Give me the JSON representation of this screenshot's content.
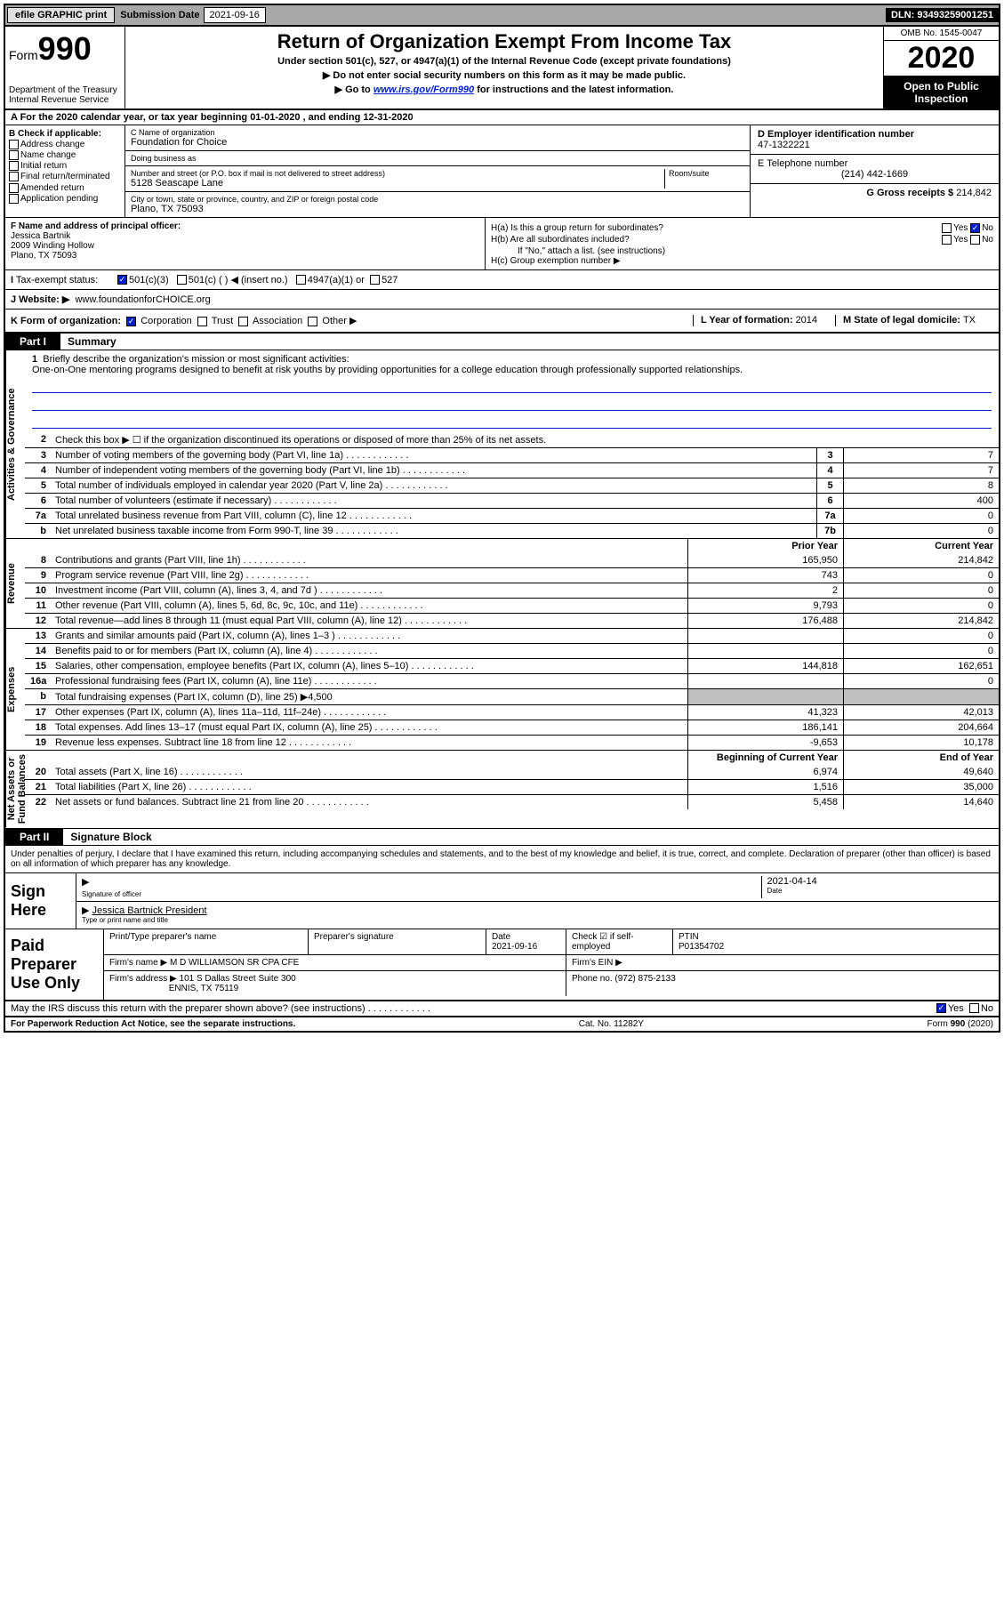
{
  "topbar": {
    "efile": "efile GRAPHIC print",
    "sub_label": "Submission Date",
    "sub_date": "2021-09-16",
    "dln_label": "DLN:",
    "dln": "93493259001251"
  },
  "header": {
    "form_prefix": "Form",
    "form_num": "990",
    "dept": "Department of the Treasury\nInternal Revenue Service",
    "title": "Return of Organization Exempt From Income Tax",
    "sub1": "Under section 501(c), 527, or 4947(a)(1) of the Internal Revenue Code (except private foundations)",
    "sub2": "Do not enter social security numbers on this form as it may be made public.",
    "sub3_pre": "Go to ",
    "sub3_link": "www.irs.gov/Form990",
    "sub3_post": " for instructions and the latest information.",
    "omb": "OMB No. 1545-0047",
    "year": "2020",
    "open": "Open to Public Inspection"
  },
  "row_a": "A For the 2020 calendar year, or tax year beginning 01-01-2020    , and ending 12-31-2020",
  "col_b": {
    "label": "B Check if applicable:",
    "items": [
      "Address change",
      "Name change",
      "Initial return",
      "Final return/terminated",
      "Amended return",
      "Application pending"
    ]
  },
  "col_c": {
    "name_lbl": "C Name of organization",
    "name": "Foundation for Choice",
    "dba_lbl": "Doing business as",
    "dba": "",
    "addr_lbl": "Number and street (or P.O. box if mail is not delivered to street address)",
    "room_lbl": "Room/suite",
    "addr": "5128 Seascape Lane",
    "city_lbl": "City or town, state or province, country, and ZIP or foreign postal code",
    "city": "Plano, TX  75093"
  },
  "col_d": {
    "ein_lbl": "D Employer identification number",
    "ein": "47-1322221",
    "tel_lbl": "E Telephone number",
    "tel": "(214) 442-1669",
    "gross_lbl": "G Gross receipts $",
    "gross": "214,842"
  },
  "f": {
    "lbl": "F  Name and address of principal officer:",
    "name": "Jessica Bartnik",
    "addr1": "2009 Winding Hollow",
    "addr2": "Plano, TX  75093"
  },
  "h": {
    "a": "H(a)  Is this a group return for subordinates?",
    "b": "H(b)  Are all subordinates included?",
    "note": "If \"No,\" attach a list. (see instructions)",
    "c": "H(c)  Group exemption number ▶",
    "yes": "Yes",
    "no": "No"
  },
  "tax": {
    "lbl": "Tax-exempt status:",
    "c3": "501(c)(3)",
    "c": "501(c) (   ) ◀ (insert no.)",
    "a1": "4947(a)(1) or",
    "s527": "527"
  },
  "website": {
    "lbl": "J Website: ▶",
    "val": "www.foundationforCHOICE.org"
  },
  "k": {
    "lbl": "K Form of organization:",
    "corp": "Corporation",
    "trust": "Trust",
    "assoc": "Association",
    "other": "Other ▶"
  },
  "l": {
    "lbl": "L Year of formation:",
    "val": "2014"
  },
  "m": {
    "lbl": "M State of legal domicile:",
    "val": "TX"
  },
  "part1": {
    "hdr": "Part I",
    "title": "Summary"
  },
  "mission": {
    "num": "1",
    "lbl": "Briefly describe the organization's mission or most significant activities:",
    "text": "One-on-One mentoring programs designed to benefit at risk youths by providing opportunities for a college education through professionally supported relationships."
  },
  "gov_lines": [
    {
      "n": "2",
      "d": "Check this box ▶ ☐  if the organization discontinued its operations or disposed of more than 25% of its net assets."
    },
    {
      "n": "3",
      "d": "Number of voting members of the governing body (Part VI, line 1a)",
      "b": "3",
      "v": "7"
    },
    {
      "n": "4",
      "d": "Number of independent voting members of the governing body (Part VI, line 1b)",
      "b": "4",
      "v": "7"
    },
    {
      "n": "5",
      "d": "Total number of individuals employed in calendar year 2020 (Part V, line 2a)",
      "b": "5",
      "v": "8"
    },
    {
      "n": "6",
      "d": "Total number of volunteers (estimate if necessary)",
      "b": "6",
      "v": "400"
    },
    {
      "n": "7a",
      "d": "Total unrelated business revenue from Part VIII, column (C), line 12",
      "b": "7a",
      "v": "0"
    },
    {
      "n": "b",
      "d": "Net unrelated business taxable income from Form 990-T, line 39",
      "b": "7b",
      "v": "0"
    }
  ],
  "col_headers": {
    "prior": "Prior Year",
    "current": "Current Year"
  },
  "rev_lines": [
    {
      "n": "8",
      "d": "Contributions and grants (Part VIII, line 1h)",
      "p": "165,950",
      "c": "214,842"
    },
    {
      "n": "9",
      "d": "Program service revenue (Part VIII, line 2g)",
      "p": "743",
      "c": "0"
    },
    {
      "n": "10",
      "d": "Investment income (Part VIII, column (A), lines 3, 4, and 7d )",
      "p": "2",
      "c": "0"
    },
    {
      "n": "11",
      "d": "Other revenue (Part VIII, column (A), lines 5, 6d, 8c, 9c, 10c, and 11e)",
      "p": "9,793",
      "c": "0"
    },
    {
      "n": "12",
      "d": "Total revenue—add lines 8 through 11 (must equal Part VIII, column (A), line 12)",
      "p": "176,488",
      "c": "214,842"
    }
  ],
  "exp_lines": [
    {
      "n": "13",
      "d": "Grants and similar amounts paid (Part IX, column (A), lines 1–3 )",
      "p": "",
      "c": "0"
    },
    {
      "n": "14",
      "d": "Benefits paid to or for members (Part IX, column (A), line 4)",
      "p": "",
      "c": "0"
    },
    {
      "n": "15",
      "d": "Salaries, other compensation, employee benefits (Part IX, column (A), lines 5–10)",
      "p": "144,818",
      "c": "162,651"
    },
    {
      "n": "16a",
      "d": "Professional fundraising fees (Part IX, column (A), line 11e)",
      "p": "",
      "c": "0"
    },
    {
      "n": "b",
      "d": "Total fundraising expenses (Part IX, column (D), line 25) ▶4,500",
      "shade": true
    },
    {
      "n": "17",
      "d": "Other expenses (Part IX, column (A), lines 11a–11d, 11f–24e)",
      "p": "41,323",
      "c": "42,013"
    },
    {
      "n": "18",
      "d": "Total expenses. Add lines 13–17 (must equal Part IX, column (A), line 25)",
      "p": "186,141",
      "c": "204,664"
    },
    {
      "n": "19",
      "d": "Revenue less expenses. Subtract line 18 from line 12",
      "p": "-9,653",
      "c": "10,178"
    }
  ],
  "na_headers": {
    "beg": "Beginning of Current Year",
    "end": "End of Year"
  },
  "na_lines": [
    {
      "n": "20",
      "d": "Total assets (Part X, line 16)",
      "p": "6,974",
      "c": "49,640"
    },
    {
      "n": "21",
      "d": "Total liabilities (Part X, line 26)",
      "p": "1,516",
      "c": "35,000"
    },
    {
      "n": "22",
      "d": "Net assets or fund balances. Subtract line 21 from line 20",
      "p": "5,458",
      "c": "14,640"
    }
  ],
  "tabs": {
    "gov": "Activities & Governance",
    "rev": "Revenue",
    "exp": "Expenses",
    "na": "Net Assets or\nFund Balances"
  },
  "part2": {
    "hdr": "Part II",
    "title": "Signature Block"
  },
  "sig_decl": "Under penalties of perjury, I declare that I have examined this return, including accompanying schedules and statements, and to the best of my knowledge and belief, it is true, correct, and complete. Declaration of preparer (other than officer) is based on all information of which preparer has any knowledge.",
  "sign": {
    "here": "Sign Here",
    "off_lbl": "Signature of officer",
    "date_lbl": "Date",
    "date": "2021-04-14",
    "name": "Jessica Bartnick  President",
    "name_lbl": "Type or print name and title"
  },
  "prep": {
    "left": "Paid Preparer Use Only",
    "name_lbl": "Print/Type preparer's name",
    "sig_lbl": "Preparer's signature",
    "date_lbl": "Date",
    "date": "2021-09-16",
    "check_lbl": "Check ☑ if self-employed",
    "ptin_lbl": "PTIN",
    "ptin": "P01354702",
    "firm_lbl": "Firm's name    ▶",
    "firm": "M D WILLIAMSON SR CPA CFE",
    "ein_lbl": "Firm's EIN ▶",
    "addr_lbl": "Firm's address ▶",
    "addr1": "101 S Dallas Street Suite 300",
    "addr2": "ENNIS, TX  75119",
    "phone_lbl": "Phone no.",
    "phone": "(972) 875-2133"
  },
  "discuss": {
    "q": "May the IRS discuss this return with the preparer shown above? (see instructions)",
    "yes": "Yes",
    "no": "No"
  },
  "footer": {
    "left": "For Paperwork Reduction Act Notice, see the separate instructions.",
    "mid": "Cat. No. 11282Y",
    "right": "Form 990 (2020)"
  }
}
